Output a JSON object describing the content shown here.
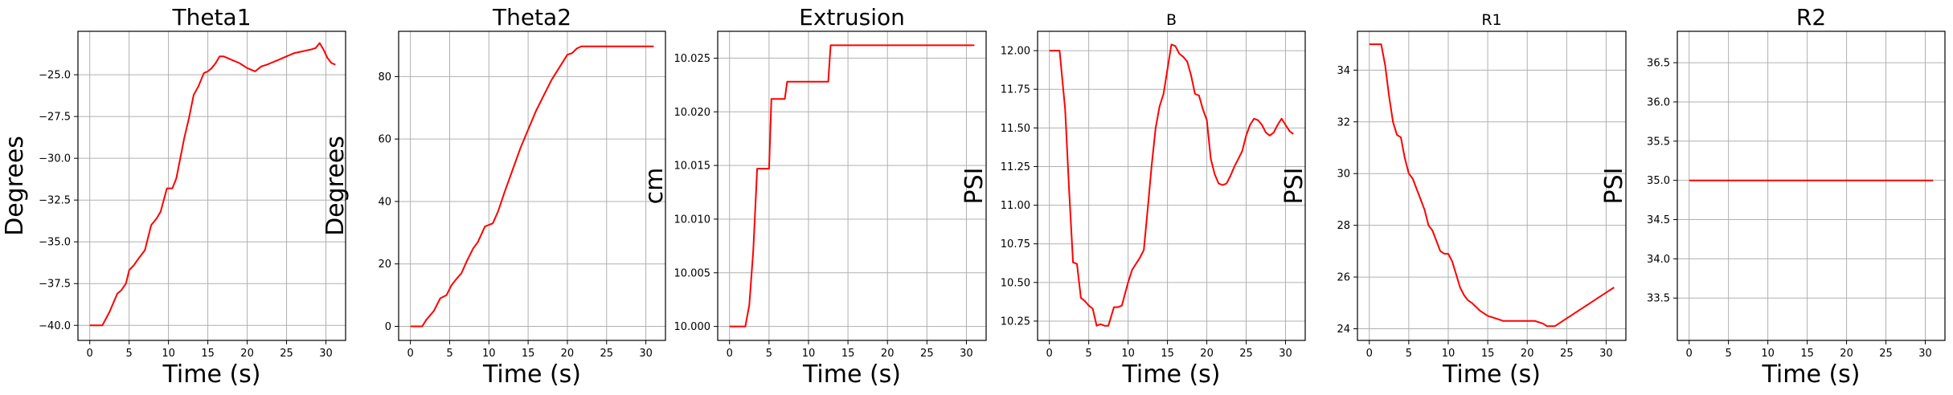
{
  "chart_data": [
    {
      "type": "line",
      "title": "Theta1",
      "xlabel": "Time (s)",
      "ylabel": "Degrees",
      "xlim": [
        -1.5,
        32.5
      ],
      "ylim": [
        -40.9,
        -22.4
      ],
      "xticks": [
        0,
        5,
        10,
        15,
        20,
        25,
        30
      ],
      "xtick_labels": [
        "0",
        "5",
        "10",
        "15",
        "20",
        "25",
        "30"
      ],
      "yticks": [
        -40.0,
        -37.5,
        -35.0,
        -32.5,
        -30.0,
        -27.5,
        -25.0
      ],
      "ytick_labels": [
        "−40.0",
        "−37.5",
        "−35.0",
        "−32.5",
        "−30.0",
        "−27.5",
        "−25.0"
      ],
      "grid": true,
      "line_color": "#ff0000",
      "series": [
        {
          "x": [
            0,
            1.6,
            2.5,
            3.5,
            4,
            4.6,
            5,
            5.6,
            6.2,
            7,
            7.8,
            8.5,
            9,
            9.8,
            10.5,
            11,
            11.5,
            12,
            12.6,
            13.2,
            13.8,
            14.5,
            15,
            15.5,
            16,
            16.5,
            17,
            17.5,
            18,
            19,
            20,
            21,
            21.8,
            22.5,
            23,
            24,
            25,
            26,
            27,
            28,
            28.7,
            29.2,
            29.7,
            30.2,
            30.7,
            31.2
          ],
          "y": [
            -40.0,
            -40.0,
            -39.2,
            -38.1,
            -37.9,
            -37.5,
            -36.7,
            -36.4,
            -36.0,
            -35.5,
            -34.0,
            -33.6,
            -33.2,
            -31.8,
            -31.8,
            -31.2,
            -30.0,
            -28.8,
            -27.6,
            -26.2,
            -25.7,
            -24.9,
            -24.8,
            -24.6,
            -24.3,
            -23.9,
            -23.9,
            -24.0,
            -24.1,
            -24.3,
            -24.6,
            -24.8,
            -24.5,
            -24.4,
            -24.3,
            -24.1,
            -23.9,
            -23.7,
            -23.6,
            -23.5,
            -23.4,
            -23.1,
            -23.5,
            -24.0,
            -24.3,
            -24.4
          ]
        }
      ]
    },
    {
      "type": "line",
      "title": "Theta2",
      "xlabel": "Time (s)",
      "ylabel": "Degrees",
      "xlim": [
        -1.5,
        32.5
      ],
      "ylim": [
        -4.5,
        94.5
      ],
      "xticks": [
        0,
        5,
        10,
        15,
        20,
        25,
        30
      ],
      "xtick_labels": [
        "0",
        "5",
        "10",
        "15",
        "20",
        "25",
        "30"
      ],
      "yticks": [
        0,
        20,
        40,
        60,
        80
      ],
      "ytick_labels": [
        "0",
        "20",
        "40",
        "60",
        "80"
      ],
      "grid": true,
      "line_color": "#ff0000",
      "series": [
        {
          "x": [
            0,
            1.5,
            2,
            3,
            3.8,
            4.6,
            5.2,
            5.8,
            6.5,
            7.2,
            8,
            8.6,
            9.5,
            10.5,
            11.2,
            12,
            13,
            14,
            15,
            16,
            17,
            18,
            19,
            20,
            20.6,
            21.2,
            21.8,
            22.5,
            25,
            28,
            31
          ],
          "y": [
            0,
            0,
            2,
            5,
            9,
            10,
            13,
            15,
            17,
            21,
            25,
            27,
            32,
            33,
            37,
            43,
            50,
            57,
            63,
            69,
            74,
            79,
            83,
            87,
            87.5,
            89,
            89.7,
            89.7,
            89.7,
            89.7,
            89.7
          ]
        }
      ]
    },
    {
      "type": "line",
      "title": "Extrusion",
      "xlabel": "Time (s)",
      "ylabel": "cm",
      "xlim": [
        -1.5,
        32.5
      ],
      "ylim": [
        9.9987,
        10.0275
      ],
      "xticks": [
        0,
        5,
        10,
        15,
        20,
        25,
        30
      ],
      "xtick_labels": [
        "0",
        "5",
        "10",
        "15",
        "20",
        "25",
        "30"
      ],
      "yticks": [
        10.0,
        10.005,
        10.01,
        10.015,
        10.02,
        10.025
      ],
      "ytick_labels": [
        "10.000",
        "10.005",
        "10.010",
        "10.015",
        "10.020",
        "10.025"
      ],
      "grid": true,
      "line_color": "#ff0000",
      "series": [
        {
          "x": [
            0,
            2,
            2.5,
            3,
            3.5,
            4,
            4.2,
            5,
            5.3,
            7,
            7.3,
            12.5,
            12.8,
            31
          ],
          "y": [
            10.0,
            10.0,
            10.002,
            10.007,
            10.0147,
            10.0147,
            10.0147,
            10.0147,
            10.0212,
            10.0212,
            10.0228,
            10.0228,
            10.0262,
            10.0262
          ]
        }
      ]
    },
    {
      "type": "line",
      "title": "B",
      "xlabel": "Time (s)",
      "ylabel": "PSI",
      "xlim": [
        -1.5,
        32.5
      ],
      "ylim": [
        10.125,
        12.125
      ],
      "xticks": [
        0,
        5,
        10,
        15,
        20,
        25,
        30
      ],
      "xtick_labels": [
        "0",
        "5",
        "10",
        "15",
        "20",
        "25",
        "30"
      ],
      "yticks": [
        10.25,
        10.5,
        10.75,
        11.0,
        11.25,
        11.5,
        11.75,
        12.0
      ],
      "ytick_labels": [
        "10.25",
        "10.50",
        "10.75",
        "11.00",
        "11.25",
        "11.50",
        "11.75",
        "12.00"
      ],
      "grid": true,
      "line_color": "#ff0000",
      "series": [
        {
          "x": [
            0,
            1.3,
            2,
            2.5,
            3,
            3.5,
            4,
            4.5,
            5,
            5.5,
            6,
            6.5,
            7,
            7.5,
            8.2,
            8.7,
            9.2,
            10,
            10.5,
            11,
            11.5,
            12,
            12.5,
            13,
            13.5,
            14,
            14.5,
            15,
            15.5,
            16,
            16.5,
            17,
            17.5,
            18,
            18.5,
            19,
            19.5,
            20,
            20.5,
            21,
            21.5,
            22,
            22.5,
            23,
            23.5,
            24,
            24.5,
            25,
            25.5,
            26,
            26.5,
            27,
            27.5,
            28,
            28.5,
            29,
            29.5,
            30,
            30.5,
            31
          ],
          "y": [
            12.0,
            12.0,
            11.62,
            11.1,
            10.63,
            10.62,
            10.4,
            10.38,
            10.35,
            10.33,
            10.22,
            10.23,
            10.22,
            10.22,
            10.34,
            10.34,
            10.35,
            10.5,
            10.58,
            10.62,
            10.66,
            10.71,
            10.98,
            11.26,
            11.5,
            11.64,
            11.72,
            11.88,
            12.04,
            12.03,
            11.98,
            11.96,
            11.93,
            11.84,
            11.72,
            11.71,
            11.62,
            11.55,
            11.3,
            11.2,
            11.14,
            11.13,
            11.14,
            11.19,
            11.25,
            11.3,
            11.35,
            11.45,
            11.52,
            11.56,
            11.55,
            11.52,
            11.47,
            11.45,
            11.47,
            11.52,
            11.56,
            11.52,
            11.48,
            11.46
          ]
        }
      ]
    },
    {
      "type": "line",
      "title": "R1",
      "xlabel": "Time (s)",
      "ylabel": "PSI",
      "xlim": [
        -1.5,
        32.5
      ],
      "ylim": [
        23.55,
        35.5
      ],
      "xticks": [
        0,
        5,
        10,
        15,
        20,
        25,
        30
      ],
      "xtick_labels": [
        "0",
        "5",
        "10",
        "15",
        "20",
        "25",
        "30"
      ],
      "yticks": [
        24,
        26,
        28,
        30,
        32,
        34
      ],
      "ytick_labels": [
        "24",
        "26",
        "28",
        "30",
        "32",
        "34"
      ],
      "grid": true,
      "line_color": "#ff0000",
      "series": [
        {
          "x": [
            0,
            1.5,
            2,
            2.5,
            3,
            3.5,
            4,
            4.5,
            5,
            5.5,
            6,
            6.5,
            7,
            7.5,
            8,
            8.5,
            9,
            9.5,
            10,
            10.5,
            11,
            11.5,
            12,
            12.5,
            13,
            14,
            15,
            16,
            17,
            18,
            19,
            20,
            21,
            22,
            22.5,
            23,
            23.5,
            24,
            24.5,
            25,
            25.5,
            26,
            27,
            28,
            29,
            30,
            31
          ],
          "y": [
            35.0,
            35.0,
            34.2,
            33.0,
            32.0,
            31.5,
            31.4,
            30.6,
            30.0,
            29.8,
            29.4,
            29.0,
            28.6,
            28.0,
            27.8,
            27.4,
            27.0,
            26.9,
            26.9,
            26.6,
            26.1,
            25.6,
            25.3,
            25.1,
            25.0,
            24.7,
            24.5,
            24.4,
            24.3,
            24.3,
            24.3,
            24.3,
            24.3,
            24.2,
            24.1,
            24.1,
            24.1,
            24.2,
            24.3,
            24.4,
            24.5,
            24.6,
            24.8,
            25.0,
            25.2,
            25.4,
            25.6
          ]
        }
      ]
    },
    {
      "type": "line",
      "title": "R2",
      "xlabel": "Time (s)",
      "ylabel": "PSI",
      "xlim": [
        -1.5,
        32.5
      ],
      "ylim": [
        32.96,
        36.9
      ],
      "xticks": [
        0,
        5,
        10,
        15,
        20,
        25,
        30
      ],
      "xtick_labels": [
        "0",
        "5",
        "10",
        "15",
        "20",
        "25",
        "30"
      ],
      "yticks": [
        33.5,
        34.0,
        34.5,
        35.0,
        35.5,
        36.0,
        36.5
      ],
      "ytick_labels": [
        "33.5",
        "34.0",
        "34.5",
        "35.0",
        "35.5",
        "36.0",
        "36.5"
      ],
      "grid": true,
      "line_color": "#ff0000",
      "series": [
        {
          "x": [
            0,
            31
          ],
          "y": [
            35.0,
            35.0
          ]
        }
      ]
    }
  ]
}
